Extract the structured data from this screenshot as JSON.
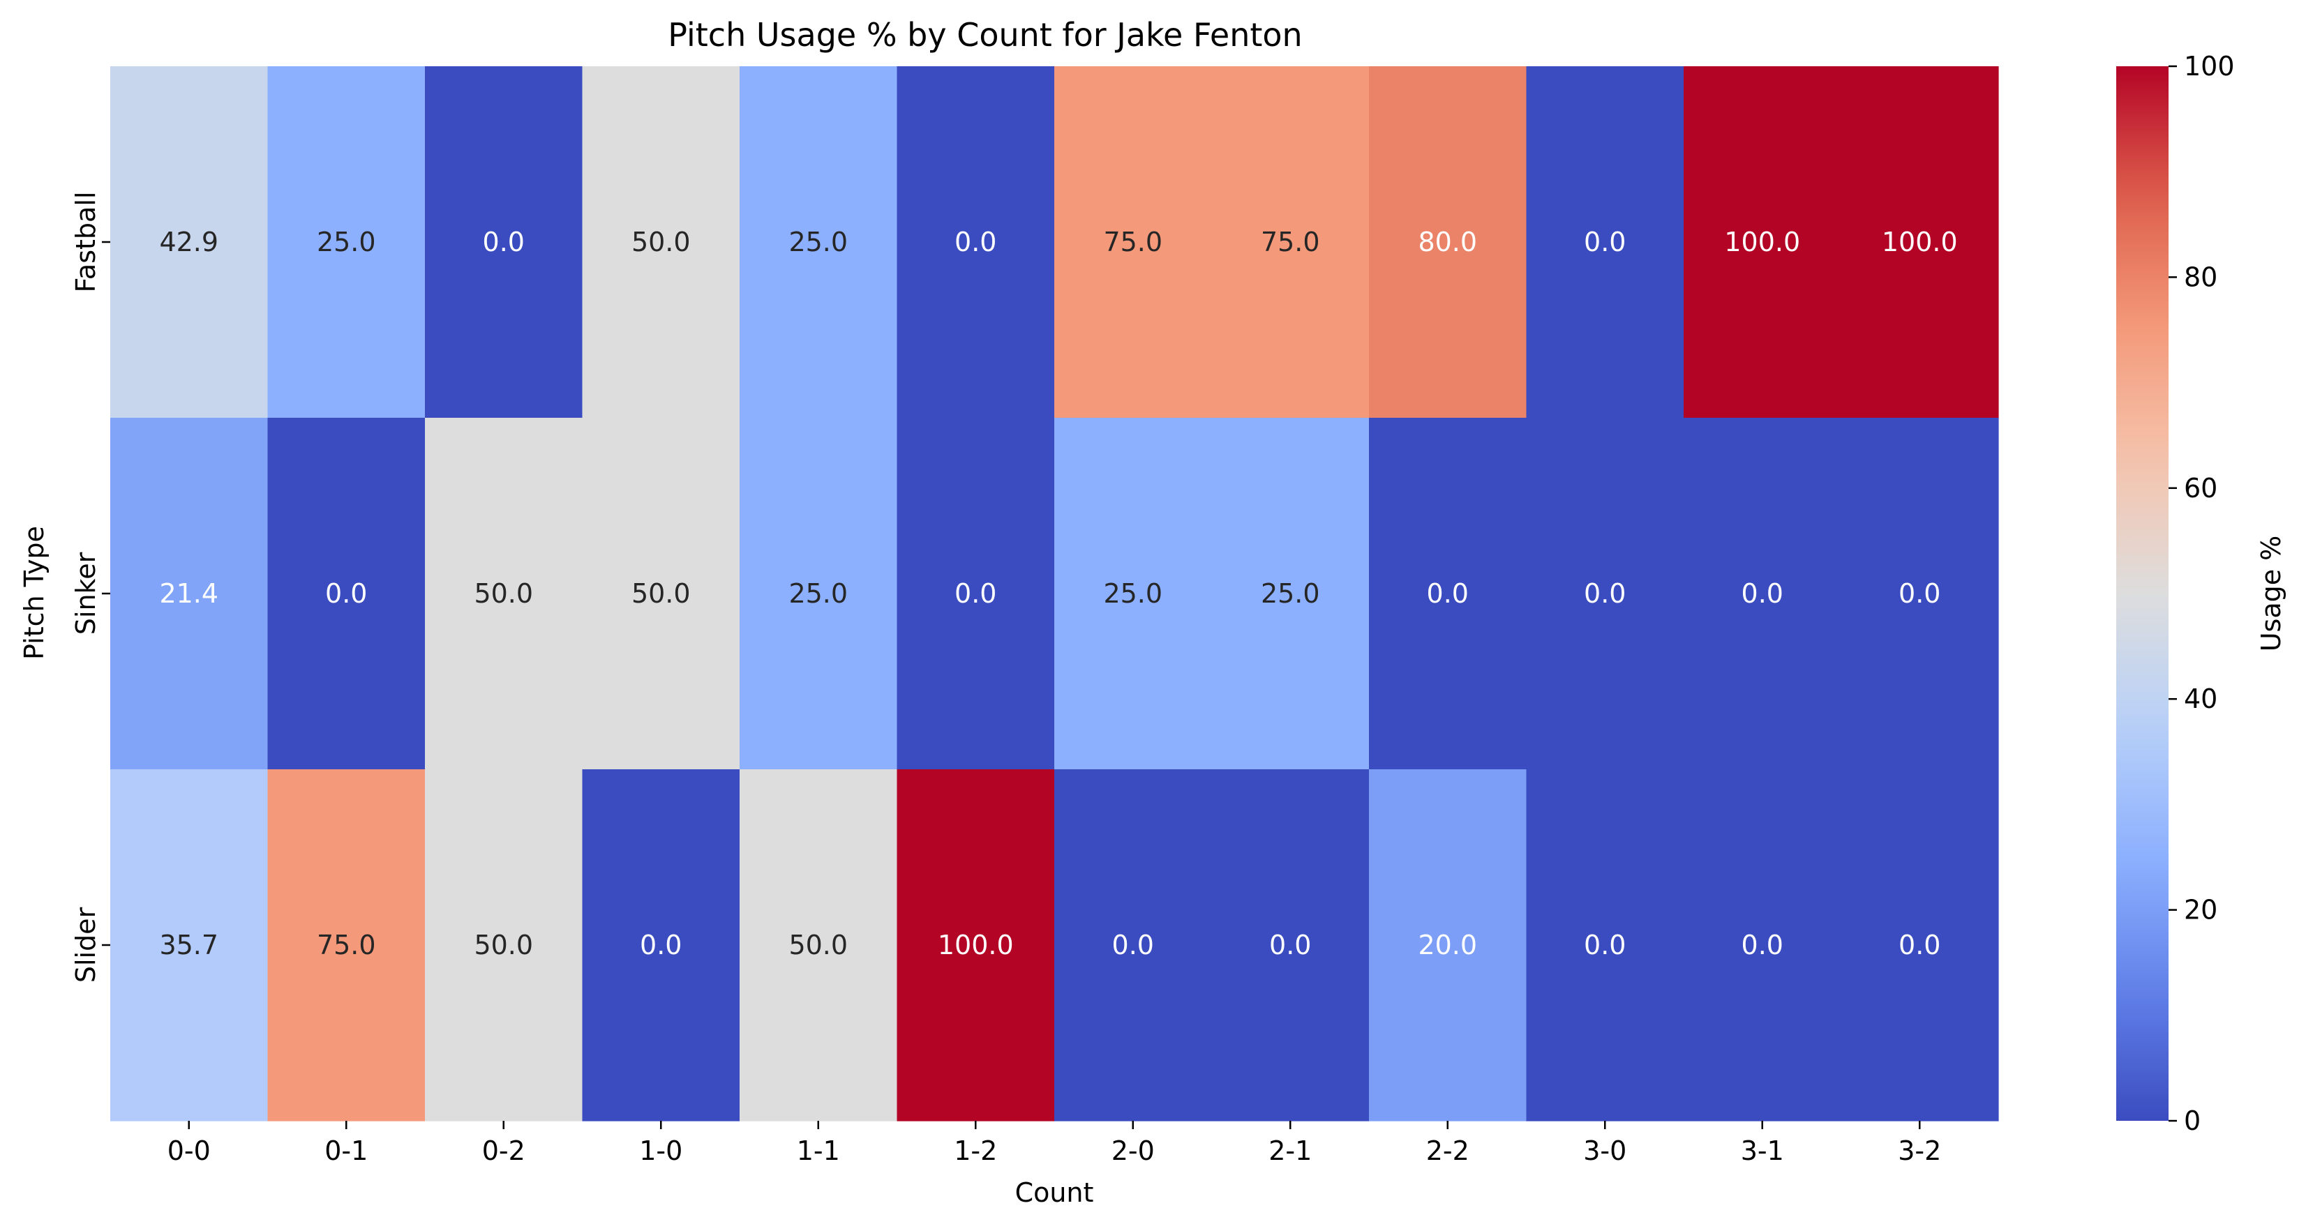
{
  "chart_data": {
    "type": "heatmap",
    "title": "Pitch Usage % by Count for Jake Fenton",
    "xlabel": "Count",
    "ylabel": "Pitch Type",
    "x_categories": [
      "0-0",
      "0-1",
      "0-2",
      "1-0",
      "1-1",
      "1-2",
      "2-0",
      "2-1",
      "2-2",
      "3-0",
      "3-1",
      "3-2"
    ],
    "y_categories": [
      "Fastball",
      "Sinker",
      "Slider"
    ],
    "values": [
      [
        42.9,
        25.0,
        0.0,
        50.0,
        25.0,
        0.0,
        75.0,
        75.0,
        80.0,
        0.0,
        100.0,
        100.0
      ],
      [
        21.4,
        0.0,
        50.0,
        50.0,
        25.0,
        0.0,
        25.0,
        25.0,
        0.0,
        0.0,
        0.0,
        0.0
      ],
      [
        35.7,
        75.0,
        50.0,
        0.0,
        50.0,
        100.0,
        0.0,
        0.0,
        20.0,
        0.0,
        0.0,
        0.0
      ]
    ],
    "value_format": "0.0",
    "colormap": "coolwarm",
    "colorbar": {
      "label": "Usage %",
      "range": [
        0,
        100
      ],
      "ticks": [
        0,
        20,
        40,
        60,
        80,
        100
      ]
    }
  }
}
